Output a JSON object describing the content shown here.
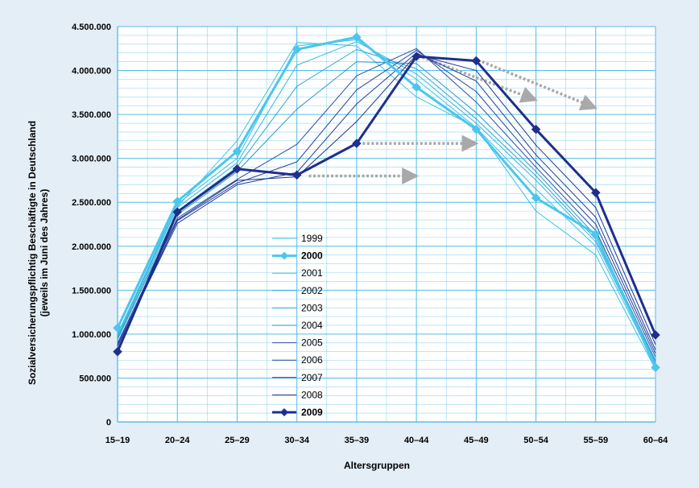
{
  "chart_data": {
    "type": "line",
    "title": "",
    "xlabel": "Altersgruppen",
    "ylabel_line1": "Sozialversicherungspflichtig Beschäftigte in Deutschland",
    "ylabel_line2": "(jeweils im Juni des Jahres)",
    "categories": [
      "15–19",
      "20–24",
      "25–29",
      "30–34",
      "35–39",
      "40–44",
      "45–49",
      "50–54",
      "55–59",
      "60–64"
    ],
    "ylim": [
      0,
      4500000
    ],
    "yticks": [
      0,
      500000,
      1000000,
      1500000,
      2000000,
      2500000,
      3000000,
      3500000,
      4000000,
      4500000
    ],
    "ytick_labels": [
      "0",
      "500.000",
      "1.000.000",
      "1.500.000",
      "2.000.000",
      "2.500.000",
      "3.000.000",
      "3.500.000",
      "4.000.000",
      "4.500.000"
    ],
    "grid": true,
    "legend_position": "center-left",
    "colors": {
      "background": "#e4eef6",
      "plot_background": "#ffffff",
      "grid": "#3fb6e3",
      "light": "#3cc1e8",
      "mid": "#2aa3d6",
      "dark": "#1e2f8c",
      "arrow": "#a9a9a9"
    },
    "series": [
      {
        "name": "1999",
        "color": "#3cc1e8",
        "highlight": false,
        "values": [
          1000000,
          2450000,
          3200000,
          4320000,
          4280000,
          3700000,
          3350000,
          2400000,
          1900000,
          600000
        ]
      },
      {
        "name": "2000",
        "color": "#4cc6ec",
        "highlight": true,
        "values": [
          1070000,
          2510000,
          3080000,
          4240000,
          4380000,
          3810000,
          3330000,
          2550000,
          2140000,
          620000
        ]
      },
      {
        "name": "2001",
        "color": "#3cc1e8",
        "highlight": false,
        "values": [
          1000000,
          2480000,
          3000000,
          4280000,
          4350000,
          3900000,
          3350000,
          2650000,
          2000000,
          640000
        ]
      },
      {
        "name": "2002",
        "color": "#33b6e0",
        "highlight": false,
        "values": [
          980000,
          2440000,
          2950000,
          4060000,
          4330000,
          3960000,
          3400000,
          2750000,
          2050000,
          660000
        ]
      },
      {
        "name": "2003",
        "color": "#2aa6d8",
        "highlight": false,
        "values": [
          960000,
          2400000,
          2900000,
          3820000,
          4240000,
          4020000,
          3450000,
          2800000,
          2080000,
          680000
        ]
      },
      {
        "name": "2004",
        "color": "#2496cf",
        "highlight": false,
        "values": [
          940000,
          2360000,
          2850000,
          3560000,
          4100000,
          4080000,
          3520000,
          2850000,
          2120000,
          700000
        ]
      },
      {
        "name": "2005",
        "color": "#2a4ea8",
        "highlight": false,
        "values": [
          900000,
          2320000,
          2760000,
          3160000,
          3940000,
          4250000,
          3640000,
          2900000,
          2180000,
          740000
        ]
      },
      {
        "name": "2006",
        "color": "#24439f",
        "highlight": false,
        "values": [
          880000,
          2290000,
          2720000,
          2960000,
          3780000,
          4230000,
          3760000,
          2960000,
          2250000,
          780000
        ]
      },
      {
        "name": "2007",
        "color": "#213a97",
        "highlight": false,
        "values": [
          860000,
          2260000,
          2700000,
          2840000,
          3620000,
          4200000,
          3880000,
          3040000,
          2330000,
          820000
        ]
      },
      {
        "name": "2008",
        "color": "#1f3392",
        "highlight": false,
        "values": [
          830000,
          2300000,
          2750000,
          2790000,
          3420000,
          4180000,
          4000000,
          3150000,
          2440000,
          880000
        ]
      },
      {
        "name": "2009",
        "color": "#1e2f8c",
        "highlight": true,
        "values": [
          800000,
          2390000,
          2880000,
          2810000,
          3170000,
          4160000,
          4110000,
          3330000,
          2610000,
          990000
        ]
      }
    ],
    "annotation_arrows": [
      {
        "from": [
          3.2,
          2800000
        ],
        "to": [
          4.9,
          2800000
        ]
      },
      {
        "from": [
          4.1,
          3170000
        ],
        "to": [
          5.9,
          3170000
        ]
      },
      {
        "from": [
          5.1,
          4150000
        ],
        "to": [
          6.9,
          3690000
        ]
      },
      {
        "from": [
          6.1,
          4100000
        ],
        "to": [
          7.9,
          3600000
        ]
      }
    ]
  }
}
